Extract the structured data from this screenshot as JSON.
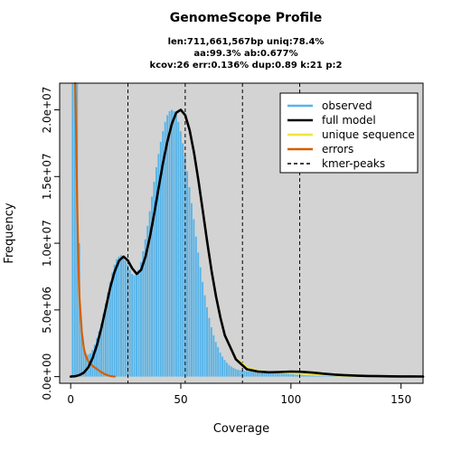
{
  "chart_data": {
    "type": "line",
    "title": "GenomeScope Profile",
    "subtitle_lines": [
      "len:711,661,567bp uniq:78.4%",
      "aa:99.3% ab:0.677%",
      "kcov:26 err:0.136% dup:0.89  k:21 p:2"
    ],
    "xlabel": "Coverage",
    "ylabel": "Frequency",
    "xlim": [
      -5,
      160
    ],
    "ylim": [
      -500000,
      22000000
    ],
    "x_ticks": [
      0,
      50,
      100,
      150
    ],
    "x_tick_labels": [
      "0",
      "50",
      "100",
      "150"
    ],
    "y_ticks": [
      0,
      5000000,
      10000000,
      15000000,
      20000000
    ],
    "y_tick_labels": [
      "0.0e+00",
      "5.0e+06",
      "1.0e+07",
      "1.5e+07",
      "2.0e+07"
    ],
    "kmer_peaks": [
      26,
      52,
      78,
      104
    ],
    "background_color": "#d3d3d3",
    "series": [
      {
        "name": "observed",
        "style": "histogram",
        "color": "#56b4e9",
        "x": [
          1,
          2,
          3,
          4,
          5,
          6,
          7,
          8,
          9,
          10,
          11,
          12,
          13,
          14,
          15,
          16,
          17,
          18,
          19,
          20,
          21,
          22,
          23,
          24,
          25,
          26,
          27,
          28,
          29,
          30,
          31,
          32,
          33,
          34,
          35,
          36,
          37,
          38,
          39,
          40,
          41,
          42,
          43,
          44,
          45,
          46,
          47,
          48,
          49,
          50,
          51,
          52,
          53,
          54,
          55,
          56,
          57,
          58,
          59,
          60,
          61,
          62,
          63,
          64,
          65,
          66,
          67,
          68,
          69,
          70,
          71,
          72,
          73,
          74,
          75,
          76,
          77,
          78,
          79,
          80,
          81,
          82,
          83,
          84,
          85,
          86,
          87,
          88,
          89,
          90,
          91,
          92,
          93,
          94,
          95,
          96,
          97,
          98,
          99,
          100,
          101,
          102,
          103,
          104,
          105,
          106,
          107,
          108,
          109,
          110,
          111,
          112,
          113,
          114,
          115,
          116,
          117,
          118,
          119,
          120,
          121,
          122,
          123,
          124,
          125,
          126,
          127,
          128,
          129,
          130,
          131,
          132,
          133,
          134,
          135,
          136,
          137,
          138,
          139,
          140,
          141,
          142,
          143,
          144,
          145,
          146,
          147,
          148,
          149,
          150,
          151,
          152,
          153,
          154,
          155,
          156,
          157,
          158,
          159,
          160
        ],
        "y": [
          22000000,
          22000000,
          22000000,
          10000000,
          4000000,
          2200000,
          1700000,
          1650000,
          1750000,
          2000000,
          2400000,
          2900000,
          3400000,
          4000000,
          4700000,
          5500000,
          6300000,
          7100000,
          7800000,
          8400000,
          8800000,
          9000000,
          9100000,
          9000000,
          8700000,
          8400000,
          8000000,
          7700000,
          7600000,
          7700000,
          8000000,
          8600000,
          9400000,
          10300000,
          11300000,
          12400000,
          13500000,
          14600000,
          15700000,
          16700000,
          17600000,
          18400000,
          19100000,
          19600000,
          19900000,
          20000000,
          19900000,
          19600000,
          19100000,
          18400000,
          17500000,
          16500000,
          15400000,
          14200000,
          13000000,
          11800000,
          10500000,
          9300000,
          8200000,
          7100000,
          6100000,
          5200000,
          4400000,
          3700000,
          3100000,
          2600000,
          2200000,
          1800000,
          1500000,
          1250000,
          1050000,
          880000,
          760000,
          660000,
          580000,
          520000,
          480000,
          450000,
          430000,
          410000,
          400000,
          395000,
          390000,
          385000,
          380000,
          370000,
          360000,
          350000,
          340000,
          330000,
          315000,
          300000,
          285000,
          270000,
          255000,
          240000,
          225000,
          210000,
          195000,
          180000,
          165000,
          150000,
          138000,
          126000,
          115000,
          105000,
          96000,
          88000,
          80000,
          73000,
          67000,
          61000,
          56000,
          51000,
          47000,
          43000,
          40000,
          37000,
          34000,
          31000,
          29000,
          27000,
          25000,
          23000,
          21000,
          19000,
          17500,
          16000,
          15000,
          14000,
          13000,
          12000,
          11000,
          10000,
          9500,
          9000,
          8500,
          8000,
          7500,
          7000,
          6500,
          6000,
          5600,
          5200,
          4800,
          4400,
          4000,
          3700,
          3400,
          3100,
          2900,
          2700,
          2500,
          2300,
          2100,
          2000,
          1900,
          1800,
          1700,
          1600
        ]
      },
      {
        "name": "full model",
        "style": "line",
        "color": "#000000",
        "x": [
          0,
          2,
          4,
          6,
          8,
          10,
          12,
          14,
          16,
          18,
          20,
          22,
          24,
          26,
          28,
          30,
          32,
          34,
          36,
          38,
          40,
          42,
          44,
          46,
          48,
          50,
          52,
          54,
          56,
          58,
          60,
          62,
          64,
          66,
          68,
          70,
          75,
          80,
          85,
          90,
          95,
          100,
          105,
          110,
          115,
          120,
          125,
          130,
          135,
          140,
          145,
          150,
          155,
          160
        ],
        "y": [
          0,
          30000,
          120000,
          300000,
          700000,
          1400000,
          2400000,
          3700000,
          5200000,
          6700000,
          7900000,
          8700000,
          9000000,
          8700000,
          8100000,
          7700000,
          8000000,
          9000000,
          10500000,
          12300000,
          14200000,
          16100000,
          17700000,
          19000000,
          19800000,
          20000000,
          19600000,
          18500000,
          16800000,
          14700000,
          12400000,
          10100000,
          7900000,
          6000000,
          4400000,
          3100000,
          1300000,
          550000,
          380000,
          330000,
          350000,
          380000,
          360000,
          300000,
          220000,
          150000,
          100000,
          70000,
          50000,
          35000,
          25000,
          18000,
          12000,
          8000
        ]
      },
      {
        "name": "unique sequence",
        "style": "line",
        "color": "#f0e442",
        "x": [
          0,
          2,
          4,
          6,
          8,
          10,
          12,
          14,
          16,
          18,
          20,
          22,
          24,
          26,
          28,
          30,
          32,
          34,
          36,
          38,
          40,
          42,
          44,
          46,
          48,
          50,
          52,
          54,
          56,
          58,
          60,
          62,
          64,
          66,
          68,
          70,
          75,
          80,
          85,
          90,
          95,
          100,
          105,
          110,
          115,
          120,
          125,
          130,
          135,
          140,
          145,
          150,
          155,
          160
        ],
        "y": [
          0,
          30000,
          120000,
          300000,
          700000,
          1400000,
          2400000,
          3700000,
          5200000,
          6700000,
          7900000,
          8700000,
          9000000,
          8700000,
          8100000,
          7700000,
          8000000,
          9000000,
          10500000,
          12300000,
          14200000,
          16100000,
          17700000,
          19000000,
          19800000,
          20000000,
          19600000,
          18500000,
          16800000,
          14700000,
          12400000,
          10100000,
          7900000,
          6000000,
          4400000,
          3100000,
          1400000,
          700000,
          450000,
          340000,
          300000,
          260000,
          220000,
          180000,
          130000,
          90000,
          60000,
          40000,
          28000,
          20000,
          14000,
          10000,
          7000,
          5000
        ]
      },
      {
        "name": "errors",
        "style": "line",
        "color": "#d55e00",
        "x": [
          2,
          2.5,
          3,
          3.5,
          4,
          5,
          6,
          7,
          8,
          9,
          10,
          11,
          12,
          13,
          14,
          15,
          16,
          17,
          18,
          19,
          20
        ],
        "y": [
          22000000,
          18000000,
          12500000,
          8600000,
          6000000,
          3400000,
          2100000,
          1500000,
          1150000,
          950000,
          800000,
          680000,
          560000,
          440000,
          330000,
          230000,
          150000,
          90000,
          50000,
          25000,
          10000
        ]
      },
      {
        "name": "kmer-peaks",
        "style": "dashed",
        "color": "#000000",
        "x": [],
        "y": []
      }
    ],
    "legend_position": "top-right"
  }
}
